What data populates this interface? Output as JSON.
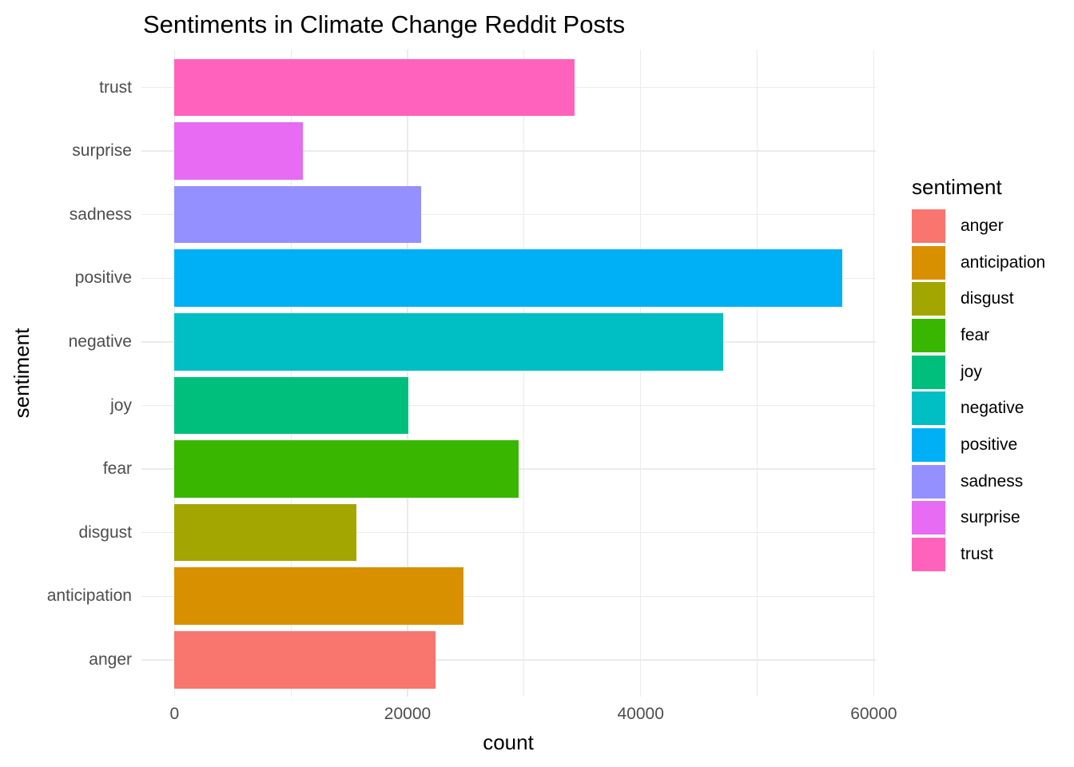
{
  "title": "Sentiments in Climate Change Reddit Posts",
  "x_axis": {
    "label": "count",
    "tick_labels": [
      "0",
      "20000",
      "40000",
      "60000"
    ],
    "tick_values": [
      0,
      20000,
      40000,
      60000
    ],
    "minor_tick_values": [
      10000,
      30000,
      50000
    ]
  },
  "y_axis": {
    "label": "sentiment",
    "tick_labels": [
      "trust",
      "surprise",
      "sadness",
      "positive",
      "negative",
      "joy",
      "fear",
      "disgust",
      "anticipation",
      "anger"
    ]
  },
  "legend": {
    "title": "sentiment",
    "entries": [
      {
        "label": "anger",
        "color": "#F8766D"
      },
      {
        "label": "anticipation",
        "color": "#D89000"
      },
      {
        "label": "disgust",
        "color": "#A3A500"
      },
      {
        "label": "fear",
        "color": "#39B600"
      },
      {
        "label": "joy",
        "color": "#00BF7D"
      },
      {
        "label": "negative",
        "color": "#00BFC4"
      },
      {
        "label": "positive",
        "color": "#00B0F6"
      },
      {
        "label": "sadness",
        "color": "#9590FF"
      },
      {
        "label": "surprise",
        "color": "#E76BF3"
      },
      {
        "label": "trust",
        "color": "#FF62BC"
      }
    ]
  },
  "style_colors": {
    "background": "#FFFFFF",
    "gridline": "#EBEBEB",
    "axis_text": "#4D4D4D",
    "title_text": "#000000"
  },
  "chart_data": {
    "type": "bar",
    "orientation": "horizontal",
    "title": "Sentiments in Climate Change Reddit Posts",
    "xlabel": "count",
    "ylabel": "sentiment",
    "xlim": [
      0,
      60000
    ],
    "grid": true,
    "legend_position": "right",
    "categories": [
      "trust",
      "surprise",
      "sadness",
      "positive",
      "negative",
      "joy",
      "fear",
      "disgust",
      "anticipation",
      "anger"
    ],
    "values": [
      34300,
      11000,
      21200,
      57300,
      47100,
      20100,
      29500,
      15600,
      24800,
      22400
    ],
    "bar_colors": [
      "#FF62BC",
      "#E76BF3",
      "#9590FF",
      "#00B0F6",
      "#00BFC4",
      "#00BF7D",
      "#39B600",
      "#A3A500",
      "#D89000",
      "#F8766D"
    ]
  }
}
